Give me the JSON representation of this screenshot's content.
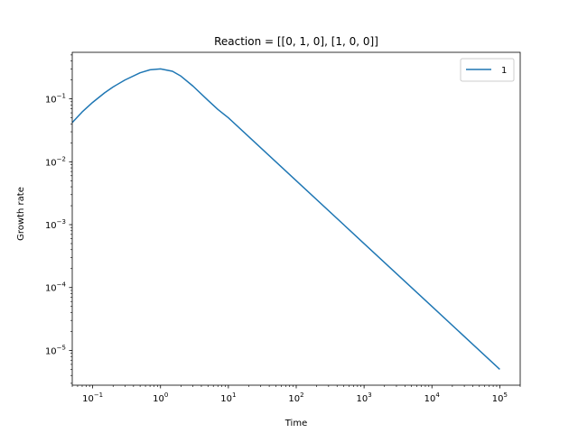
{
  "chart_data": {
    "type": "line",
    "title": "Reaction = [[0, 1, 0], [1, 0, 0]]",
    "xlabel": "Time",
    "ylabel": "Growth rate",
    "xscale": "log",
    "yscale": "log",
    "xlim": [
      0.05,
      200000
    ],
    "ylim": [
      2.8e-06,
      0.55
    ],
    "grid": false,
    "legend_position": "top-right",
    "x_ticks": [
      {
        "value": 0.1,
        "base": "10",
        "exp": "−1"
      },
      {
        "value": 1,
        "base": "10",
        "exp": "0"
      },
      {
        "value": 10,
        "base": "10",
        "exp": "1"
      },
      {
        "value": 100,
        "base": "10",
        "exp": "2"
      },
      {
        "value": 1000,
        "base": "10",
        "exp": "3"
      },
      {
        "value": 10000,
        "base": "10",
        "exp": "4"
      },
      {
        "value": 100000,
        "base": "10",
        "exp": "5"
      }
    ],
    "y_ticks": [
      {
        "value": 0.1,
        "base": "10",
        "exp": "−1"
      },
      {
        "value": 0.01,
        "base": "10",
        "exp": "−2"
      },
      {
        "value": 0.001,
        "base": "10",
        "exp": "−3"
      },
      {
        "value": 0.0001,
        "base": "10",
        "exp": "−4"
      },
      {
        "value": 1e-05,
        "base": "10",
        "exp": "−5"
      }
    ],
    "series": [
      {
        "name": "1",
        "color": "#1f77b4",
        "x": [
          0.05,
          0.07,
          0.1,
          0.15,
          0.2,
          0.3,
          0.5,
          0.7,
          1.0,
          1.5,
          2,
          3,
          5,
          7,
          10,
          20,
          50,
          100,
          1000,
          10000,
          100000
        ],
        "y": [
          0.042,
          0.062,
          0.088,
          0.125,
          0.155,
          0.2,
          0.26,
          0.29,
          0.3,
          0.275,
          0.23,
          0.16,
          0.095,
          0.068,
          0.05,
          0.025,
          0.01,
          0.005,
          0.0005,
          5e-05,
          5e-06
        ]
      }
    ]
  }
}
